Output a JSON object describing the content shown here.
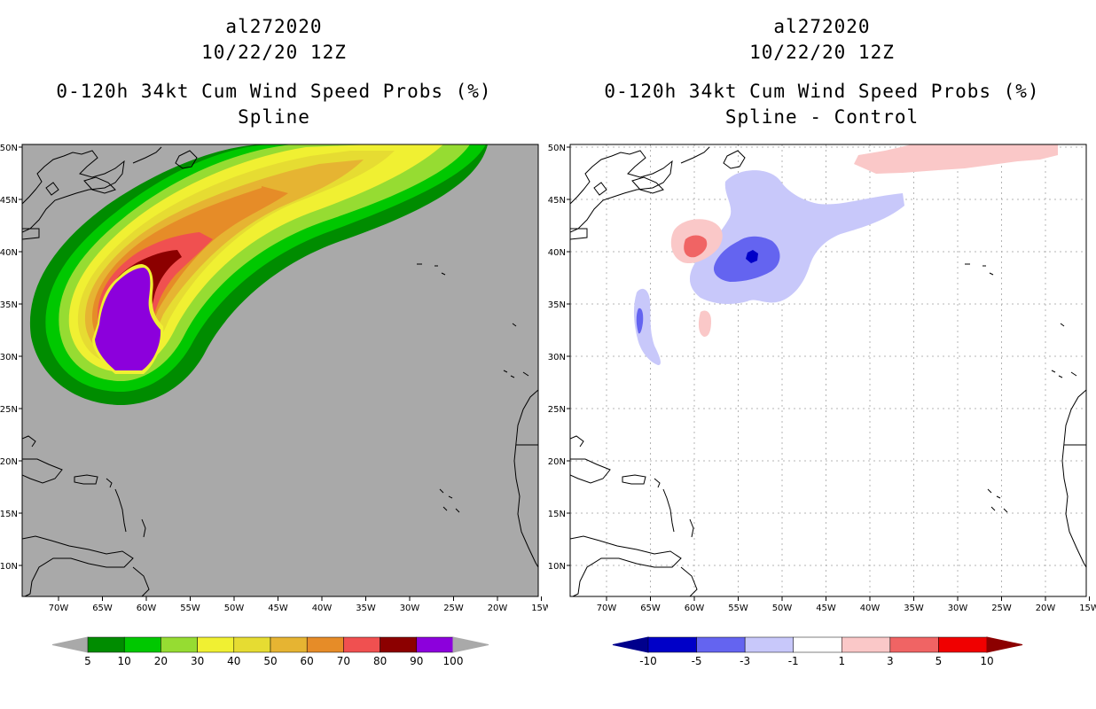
{
  "left_panel": {
    "storm_id": "al272020",
    "datetime": "10/22/20 12Z",
    "product": "0-120h 34kt Cum Wind Speed Probs (%)",
    "subtitle": "Spline",
    "background_color": "#a9a9a9",
    "colorbar": {
      "labels": [
        "5",
        "10",
        "20",
        "30",
        "40",
        "50",
        "60",
        "70",
        "80",
        "90",
        "100"
      ],
      "colors": [
        "#008c00",
        "#00c800",
        "#96dc32",
        "#f0f032",
        "#e6dc32",
        "#e6b432",
        "#e68c28",
        "#f05050",
        "#8c0000",
        "#8c00dc"
      ],
      "end_color": "#a9a9a9"
    }
  },
  "right_panel": {
    "storm_id": "al272020",
    "datetime": "10/22/20 12Z",
    "product": "0-120h 34kt Cum Wind Speed Probs (%)",
    "subtitle": "Spline - Control",
    "background_color": "#ffffff",
    "colorbar": {
      "labels": [
        "-10",
        "-5",
        "-3",
        "-1",
        "1",
        "3",
        "5",
        "10"
      ],
      "colors": [
        "#0000c8",
        "#6464f0",
        "#c8c8fa",
        "#ffffff",
        "#fac8c8",
        "#f06464",
        "#f00000"
      ],
      "low_end_color": "#00008c",
      "high_end_color": "#8c0000"
    }
  },
  "map": {
    "lon_labels": [
      "70W",
      "65W",
      "60W",
      "55W",
      "50W",
      "45W",
      "40W",
      "35W",
      "30W",
      "25W",
      "20W",
      "15W"
    ],
    "lat_labels": [
      "50N",
      "45N",
      "40N",
      "35N",
      "30N",
      "25N",
      "20N",
      "15N",
      "10N"
    ]
  }
}
